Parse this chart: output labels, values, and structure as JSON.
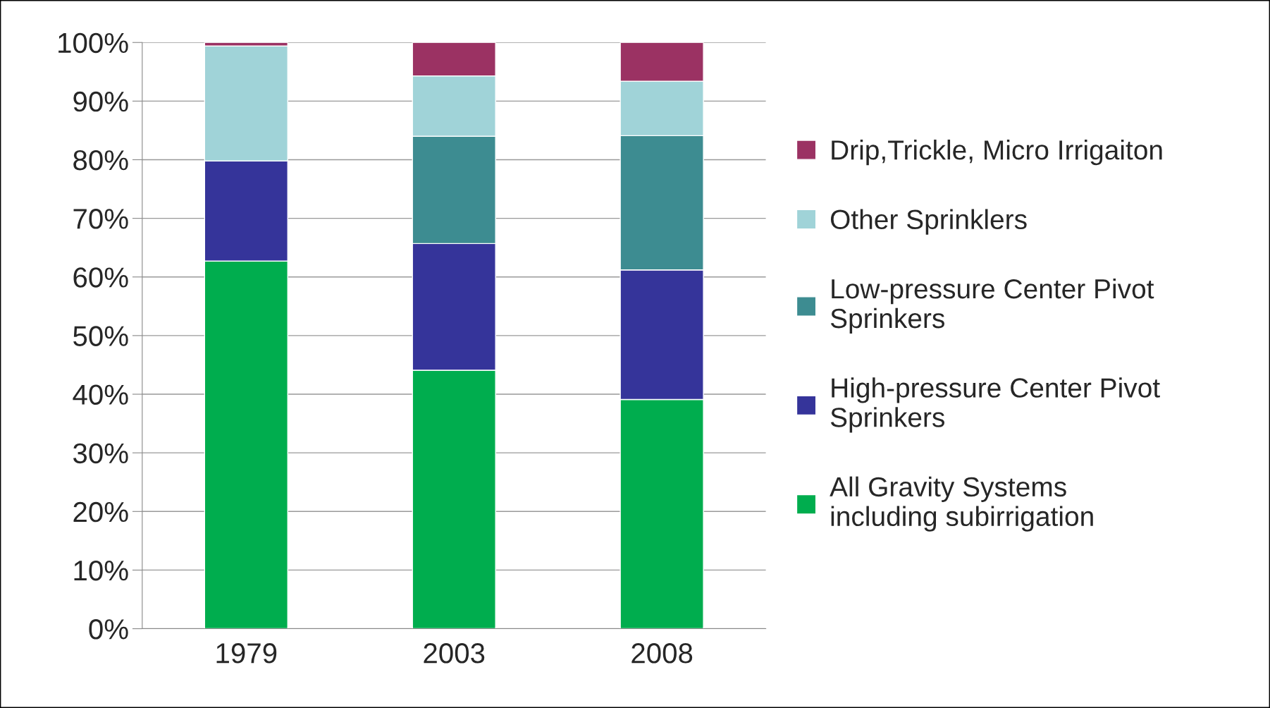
{
  "chart_data": {
    "type": "bar",
    "stacked": true,
    "categories": [
      "1979",
      "2003",
      "2008"
    ],
    "series": [
      {
        "name": "All Gravity Systems\nincluding subirrigation",
        "color": "#00ad4e",
        "values": [
          62.7,
          44.1,
          39.1
        ]
      },
      {
        "name": "High-pressure Center Pivot\nSprinkers",
        "color": "#35349a",
        "values": [
          17.1,
          21.6,
          22.1
        ]
      },
      {
        "name": "Low-pressure Center Pivot\nSprinkers",
        "color": "#3d8c91",
        "values": [
          0,
          18.3,
          22.9
        ]
      },
      {
        "name": "Other Sprinklers",
        "color": "#a0d3d8",
        "values": [
          19.6,
          10.3,
          9.3
        ]
      },
      {
        "name": "Drip,Trickle, Micro Irrigaiton",
        "color": "#9b3263",
        "values": [
          0.6,
          5.7,
          6.6
        ]
      }
    ],
    "ylim": [
      0,
      100
    ],
    "yticks": [
      {
        "value": 0,
        "label": "0%"
      },
      {
        "value": 10,
        "label": "10%"
      },
      {
        "value": 20,
        "label": "20%"
      },
      {
        "value": 30,
        "label": "30%"
      },
      {
        "value": 40,
        "label": "40%"
      },
      {
        "value": 50,
        "label": "50%"
      },
      {
        "value": 60,
        "label": "60%"
      },
      {
        "value": 70,
        "label": "70%"
      },
      {
        "value": 80,
        "label": "80%"
      },
      {
        "value": 90,
        "label": "90%"
      },
      {
        "value": 100,
        "label": "100%"
      }
    ],
    "grid": "y",
    "legend": "right"
  }
}
